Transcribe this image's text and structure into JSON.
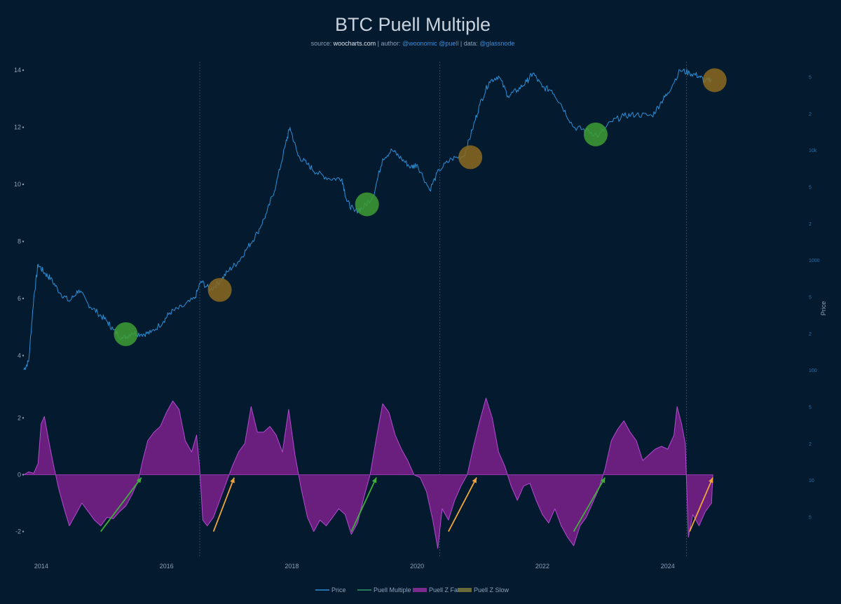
{
  "chart_data": {
    "type": "line",
    "title": "BTC Puell Multiple",
    "subtitle": {
      "prefix": "source: ",
      "source": "woocharts.com",
      "author_sep": " | author: ",
      "author": "@woonomic @puell",
      "data_sep": " | data: ",
      "data": "@glassnode"
    },
    "x_ticks": [
      "2014",
      "2016",
      "2018",
      "2020",
      "2022",
      "2024"
    ],
    "x_range": [
      2013.7,
      2025.2
    ],
    "y_left_upper_ticks": [
      "14",
      "12",
      "10",
      "8",
      "6",
      "4"
    ],
    "y_left_upper_range": [
      3.2,
      14.3
    ],
    "y_left_lower_ticks": [
      "2",
      "0",
      "-2"
    ],
    "y_left_lower_range": [
      -2.9,
      2.9
    ],
    "y_right_ticks": [
      "5",
      "2",
      "10k",
      "5",
      "2",
      "1000",
      "5",
      "2",
      "100",
      "5",
      "2",
      "10",
      "5"
    ],
    "ylabel_right": "Price",
    "halving_lines": [
      2016.53,
      2020.36,
      2024.3
    ],
    "series": [
      {
        "name": "Price",
        "color": "#2b8fd6",
        "points": [
          [
            2013.72,
            3.5
          ],
          [
            2013.8,
            3.8
          ],
          [
            2013.88,
            6.0
          ],
          [
            2013.95,
            7.2
          ],
          [
            2014.05,
            6.9
          ],
          [
            2014.15,
            6.7
          ],
          [
            2014.3,
            6.2
          ],
          [
            2014.45,
            5.9
          ],
          [
            2014.6,
            6.3
          ],
          [
            2014.75,
            5.8
          ],
          [
            2014.9,
            5.5
          ],
          [
            2015.05,
            5.2
          ],
          [
            2015.15,
            4.9
          ],
          [
            2015.3,
            4.6
          ],
          [
            2015.45,
            4.8
          ],
          [
            2015.6,
            4.75
          ],
          [
            2015.75,
            4.8
          ],
          [
            2015.95,
            5.2
          ],
          [
            2016.05,
            5.5
          ],
          [
            2016.25,
            5.7
          ],
          [
            2016.45,
            6.0
          ],
          [
            2016.55,
            6.6
          ],
          [
            2016.7,
            6.3
          ],
          [
            2016.85,
            6.6
          ],
          [
            2017.0,
            7.0
          ],
          [
            2017.15,
            7.3
          ],
          [
            2017.3,
            7.8
          ],
          [
            2017.45,
            8.3
          ],
          [
            2017.6,
            9.0
          ],
          [
            2017.75,
            10.0
          ],
          [
            2017.9,
            11.4
          ],
          [
            2017.97,
            12.0
          ],
          [
            2018.1,
            11.0
          ],
          [
            2018.25,
            10.7
          ],
          [
            2018.4,
            10.4
          ],
          [
            2018.6,
            10.2
          ],
          [
            2018.8,
            10.2
          ],
          [
            2018.88,
            9.4
          ],
          [
            2019.0,
            9.05
          ],
          [
            2019.15,
            9.2
          ],
          [
            2019.3,
            9.6
          ],
          [
            2019.45,
            10.9
          ],
          [
            2019.6,
            11.2
          ],
          [
            2019.75,
            10.9
          ],
          [
            2019.9,
            10.6
          ],
          [
            2020.0,
            10.7
          ],
          [
            2020.2,
            9.8
          ],
          [
            2020.35,
            10.5
          ],
          [
            2020.55,
            10.9
          ],
          [
            2020.75,
            11.0
          ],
          [
            2020.88,
            11.9
          ],
          [
            2021.0,
            12.8
          ],
          [
            2021.15,
            13.6
          ],
          [
            2021.3,
            13.8
          ],
          [
            2021.45,
            13.1
          ],
          [
            2021.6,
            13.3
          ],
          [
            2021.75,
            13.6
          ],
          [
            2021.85,
            13.9
          ],
          [
            2022.0,
            13.4
          ],
          [
            2022.15,
            13.3
          ],
          [
            2022.3,
            12.8
          ],
          [
            2022.5,
            12.0
          ],
          [
            2022.7,
            11.9
          ],
          [
            2022.9,
            11.7
          ],
          [
            2023.1,
            12.2
          ],
          [
            2023.3,
            12.4
          ],
          [
            2023.5,
            12.45
          ],
          [
            2023.75,
            12.4
          ],
          [
            2023.9,
            12.9
          ],
          [
            2024.0,
            13.2
          ],
          [
            2024.2,
            14.0
          ],
          [
            2024.35,
            13.9
          ],
          [
            2024.5,
            13.8
          ],
          [
            2024.6,
            13.6
          ],
          [
            2024.7,
            13.7
          ]
        ]
      },
      {
        "name": "Puell Multiple",
        "color": "#2f9a6a",
        "points": []
      },
      {
        "name": "Puell Z Fast",
        "color": "#7b2a8e",
        "points": [
          [
            2013.72,
            0.0
          ],
          [
            2013.8,
            0.1
          ],
          [
            2013.88,
            0.05
          ],
          [
            2013.95,
            0.4
          ],
          [
            2014.0,
            1.8
          ],
          [
            2014.05,
            2.05
          ],
          [
            2014.12,
            1.2
          ],
          [
            2014.2,
            0.3
          ],
          [
            2014.28,
            -0.5
          ],
          [
            2014.38,
            -1.3
          ],
          [
            2014.45,
            -1.8
          ],
          [
            2014.55,
            -1.4
          ],
          [
            2014.65,
            -1.0
          ],
          [
            2014.75,
            -1.3
          ],
          [
            2014.85,
            -1.6
          ],
          [
            2014.95,
            -1.8
          ],
          [
            2015.05,
            -1.5
          ],
          [
            2015.15,
            -1.55
          ],
          [
            2015.25,
            -1.3
          ],
          [
            2015.35,
            -1.1
          ],
          [
            2015.45,
            -0.7
          ],
          [
            2015.55,
            -0.2
          ],
          [
            2015.62,
            0.5
          ],
          [
            2015.7,
            1.2
          ],
          [
            2015.8,
            1.5
          ],
          [
            2015.9,
            1.7
          ],
          [
            2016.0,
            2.2
          ],
          [
            2016.1,
            2.6
          ],
          [
            2016.2,
            2.3
          ],
          [
            2016.3,
            1.2
          ],
          [
            2016.4,
            0.8
          ],
          [
            2016.48,
            1.4
          ],
          [
            2016.53,
            0.2
          ],
          [
            2016.58,
            -1.6
          ],
          [
            2016.65,
            -1.8
          ],
          [
            2016.75,
            -1.5
          ],
          [
            2016.85,
            -0.9
          ],
          [
            2016.95,
            -0.3
          ],
          [
            2017.05,
            0.3
          ],
          [
            2017.15,
            0.8
          ],
          [
            2017.25,
            1.1
          ],
          [
            2017.35,
            2.4
          ],
          [
            2017.45,
            1.5
          ],
          [
            2017.55,
            1.5
          ],
          [
            2017.65,
            1.7
          ],
          [
            2017.75,
            1.4
          ],
          [
            2017.85,
            0.8
          ],
          [
            2017.95,
            2.3
          ],
          [
            2018.05,
            0.7
          ],
          [
            2018.15,
            -0.5
          ],
          [
            2018.25,
            -1.5
          ],
          [
            2018.35,
            -2.0
          ],
          [
            2018.45,
            -1.6
          ],
          [
            2018.55,
            -1.8
          ],
          [
            2018.65,
            -1.5
          ],
          [
            2018.75,
            -1.2
          ],
          [
            2018.85,
            -1.4
          ],
          [
            2018.95,
            -2.1
          ],
          [
            2019.05,
            -1.7
          ],
          [
            2019.15,
            -0.8
          ],
          [
            2019.25,
            0.0
          ],
          [
            2019.35,
            1.3
          ],
          [
            2019.45,
            2.5
          ],
          [
            2019.55,
            2.2
          ],
          [
            2019.65,
            1.4
          ],
          [
            2019.75,
            0.9
          ],
          [
            2019.85,
            0.5
          ],
          [
            2019.95,
            0.0
          ],
          [
            2020.05,
            -0.1
          ],
          [
            2020.15,
            -0.6
          ],
          [
            2020.25,
            -1.6
          ],
          [
            2020.33,
            -2.6
          ],
          [
            2020.4,
            -1.2
          ],
          [
            2020.5,
            -1.6
          ],
          [
            2020.6,
            -0.9
          ],
          [
            2020.7,
            -0.4
          ],
          [
            2020.8,
            0.0
          ],
          [
            2020.9,
            1.0
          ],
          [
            2021.0,
            1.9
          ],
          [
            2021.1,
            2.7
          ],
          [
            2021.2,
            2.0
          ],
          [
            2021.3,
            0.8
          ],
          [
            2021.4,
            0.3
          ],
          [
            2021.5,
            -0.4
          ],
          [
            2021.6,
            -0.9
          ],
          [
            2021.7,
            -0.4
          ],
          [
            2021.8,
            -0.3
          ],
          [
            2021.9,
            -0.9
          ],
          [
            2022.0,
            -1.4
          ],
          [
            2022.1,
            -1.7
          ],
          [
            2022.2,
            -1.2
          ],
          [
            2022.3,
            -1.8
          ],
          [
            2022.4,
            -2.2
          ],
          [
            2022.5,
            -2.5
          ],
          [
            2022.6,
            -1.8
          ],
          [
            2022.7,
            -1.5
          ],
          [
            2022.8,
            -1.0
          ],
          [
            2022.9,
            -0.5
          ],
          [
            2023.0,
            0.2
          ],
          [
            2023.1,
            1.2
          ],
          [
            2023.2,
            1.6
          ],
          [
            2023.3,
            1.9
          ],
          [
            2023.4,
            1.5
          ],
          [
            2023.5,
            1.2
          ],
          [
            2023.6,
            0.5
          ],
          [
            2023.7,
            0.7
          ],
          [
            2023.8,
            0.9
          ],
          [
            2023.9,
            1.0
          ],
          [
            2024.0,
            0.9
          ],
          [
            2024.1,
            1.4
          ],
          [
            2024.15,
            2.4
          ],
          [
            2024.22,
            1.8
          ],
          [
            2024.28,
            1.1
          ],
          [
            2024.33,
            -2.2
          ],
          [
            2024.4,
            -1.4
          ],
          [
            2024.5,
            -1.8
          ],
          [
            2024.6,
            -1.3
          ],
          [
            2024.7,
            -1.0
          ],
          [
            2024.72,
            0.0
          ]
        ]
      },
      {
        "name": "Puell Z Slow",
        "color": "#6b6a3a",
        "points": []
      }
    ],
    "markers": [
      {
        "x": 2015.35,
        "y": 4.75,
        "kind": "bottom",
        "color": "#3e9e32"
      },
      {
        "x": 2016.85,
        "y": 6.3,
        "kind": "top",
        "color": "#8c6a1e"
      },
      {
        "x": 2019.2,
        "y": 9.3,
        "kind": "bottom",
        "color": "#3e9e32"
      },
      {
        "x": 2020.85,
        "y": 10.95,
        "kind": "top",
        "color": "#8c6a1e"
      },
      {
        "x": 2022.85,
        "y": 11.75,
        "kind": "bottom",
        "color": "#3e9e32"
      },
      {
        "x": 2024.75,
        "y": 13.65,
        "kind": "top",
        "color": "#8c6a1e"
      }
    ],
    "arrows": [
      {
        "from": [
          2014.95,
          -2.0
        ],
        "to": [
          2015.6,
          -0.1
        ],
        "color": "#3fae3c"
      },
      {
        "from": [
          2016.75,
          -2.0
        ],
        "to": [
          2017.08,
          -0.1
        ],
        "color": "#f0a53a"
      },
      {
        "from": [
          2018.95,
          -2.0
        ],
        "to": [
          2019.35,
          -0.1
        ],
        "color": "#3fae3c"
      },
      {
        "from": [
          2020.5,
          -2.0
        ],
        "to": [
          2020.95,
          -0.1
        ],
        "color": "#f0a53a"
      },
      {
        "from": [
          2022.5,
          -2.0
        ],
        "to": [
          2023.0,
          -0.1
        ],
        "color": "#3fae3c"
      },
      {
        "from": [
          2024.35,
          -2.0
        ],
        "to": [
          2024.72,
          -0.1
        ],
        "color": "#f0a53a"
      }
    ],
    "legend": [
      "Price",
      "Puell Multiple",
      "Puell Z Fast",
      "Puell Z Slow"
    ],
    "legend_placement": "bottom",
    "grid": false
  }
}
